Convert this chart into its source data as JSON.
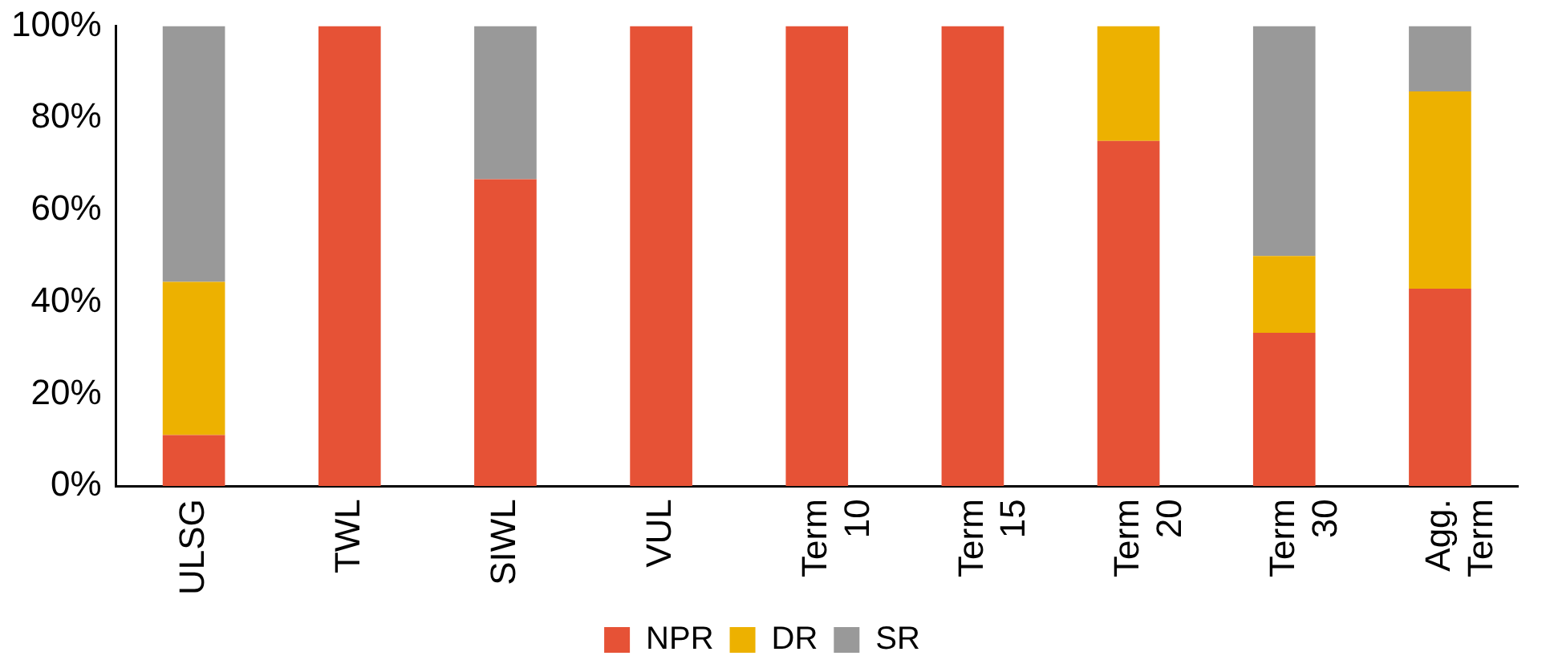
{
  "chart_data": {
    "type": "bar",
    "stacked": true,
    "categories": [
      "ULSG",
      "TWL",
      "SIWL",
      "VUL",
      "Term 10",
      "Term 15",
      "Term 20",
      "Term 30",
      "Agg. Term"
    ],
    "series": [
      {
        "name": "NPR",
        "color": "#e65236",
        "values": [
          11.1,
          100,
          66.7,
          100,
          100,
          100,
          75,
          33.3,
          42.9
        ]
      },
      {
        "name": "DR",
        "color": "#edb100",
        "values": [
          33.3,
          0,
          0,
          0,
          0,
          0,
          25,
          16.7,
          42.9
        ]
      },
      {
        "name": "SR",
        "color": "#999999",
        "values": [
          55.6,
          0,
          33.3,
          0,
          0,
          0,
          0,
          50,
          14.2
        ]
      }
    ],
    "ylim": [
      0,
      100
    ],
    "yticks": [
      {
        "value": 0,
        "label": "0%"
      },
      {
        "value": 20,
        "label": "20%"
      },
      {
        "value": 40,
        "label": "40%"
      },
      {
        "value": 60,
        "label": "60%"
      },
      {
        "value": 80,
        "label": "80%"
      },
      {
        "value": 100,
        "label": "100%"
      }
    ],
    "grid": false,
    "legend": "bottom"
  }
}
